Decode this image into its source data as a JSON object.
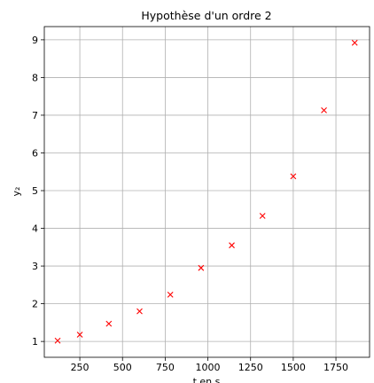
{
  "chart_data": {
    "type": "scatter",
    "title": "Hypothèse d'un ordre 2",
    "xlabel": "t en s",
    "ylabel": "y₂",
    "series": [
      {
        "name": "y₂",
        "color": "#ff0000",
        "marker": "x",
        "x": [
          120,
          250,
          420,
          600,
          780,
          960,
          1140,
          1320,
          1500,
          1680,
          1860
        ],
        "values": [
          1.02,
          1.18,
          1.47,
          1.8,
          2.24,
          2.95,
          3.55,
          4.33,
          5.38,
          7.13,
          8.92
        ]
      }
    ],
    "xlim": [
      42,
      1947
    ],
    "xticks": [
      250,
      500,
      750,
      1000,
      1250,
      1500,
      1750
    ],
    "ylim": [
      0.58,
      9.35
    ],
    "yticks": [
      1,
      2,
      3,
      4,
      5,
      6,
      7,
      8,
      9
    ],
    "grid": true
  }
}
